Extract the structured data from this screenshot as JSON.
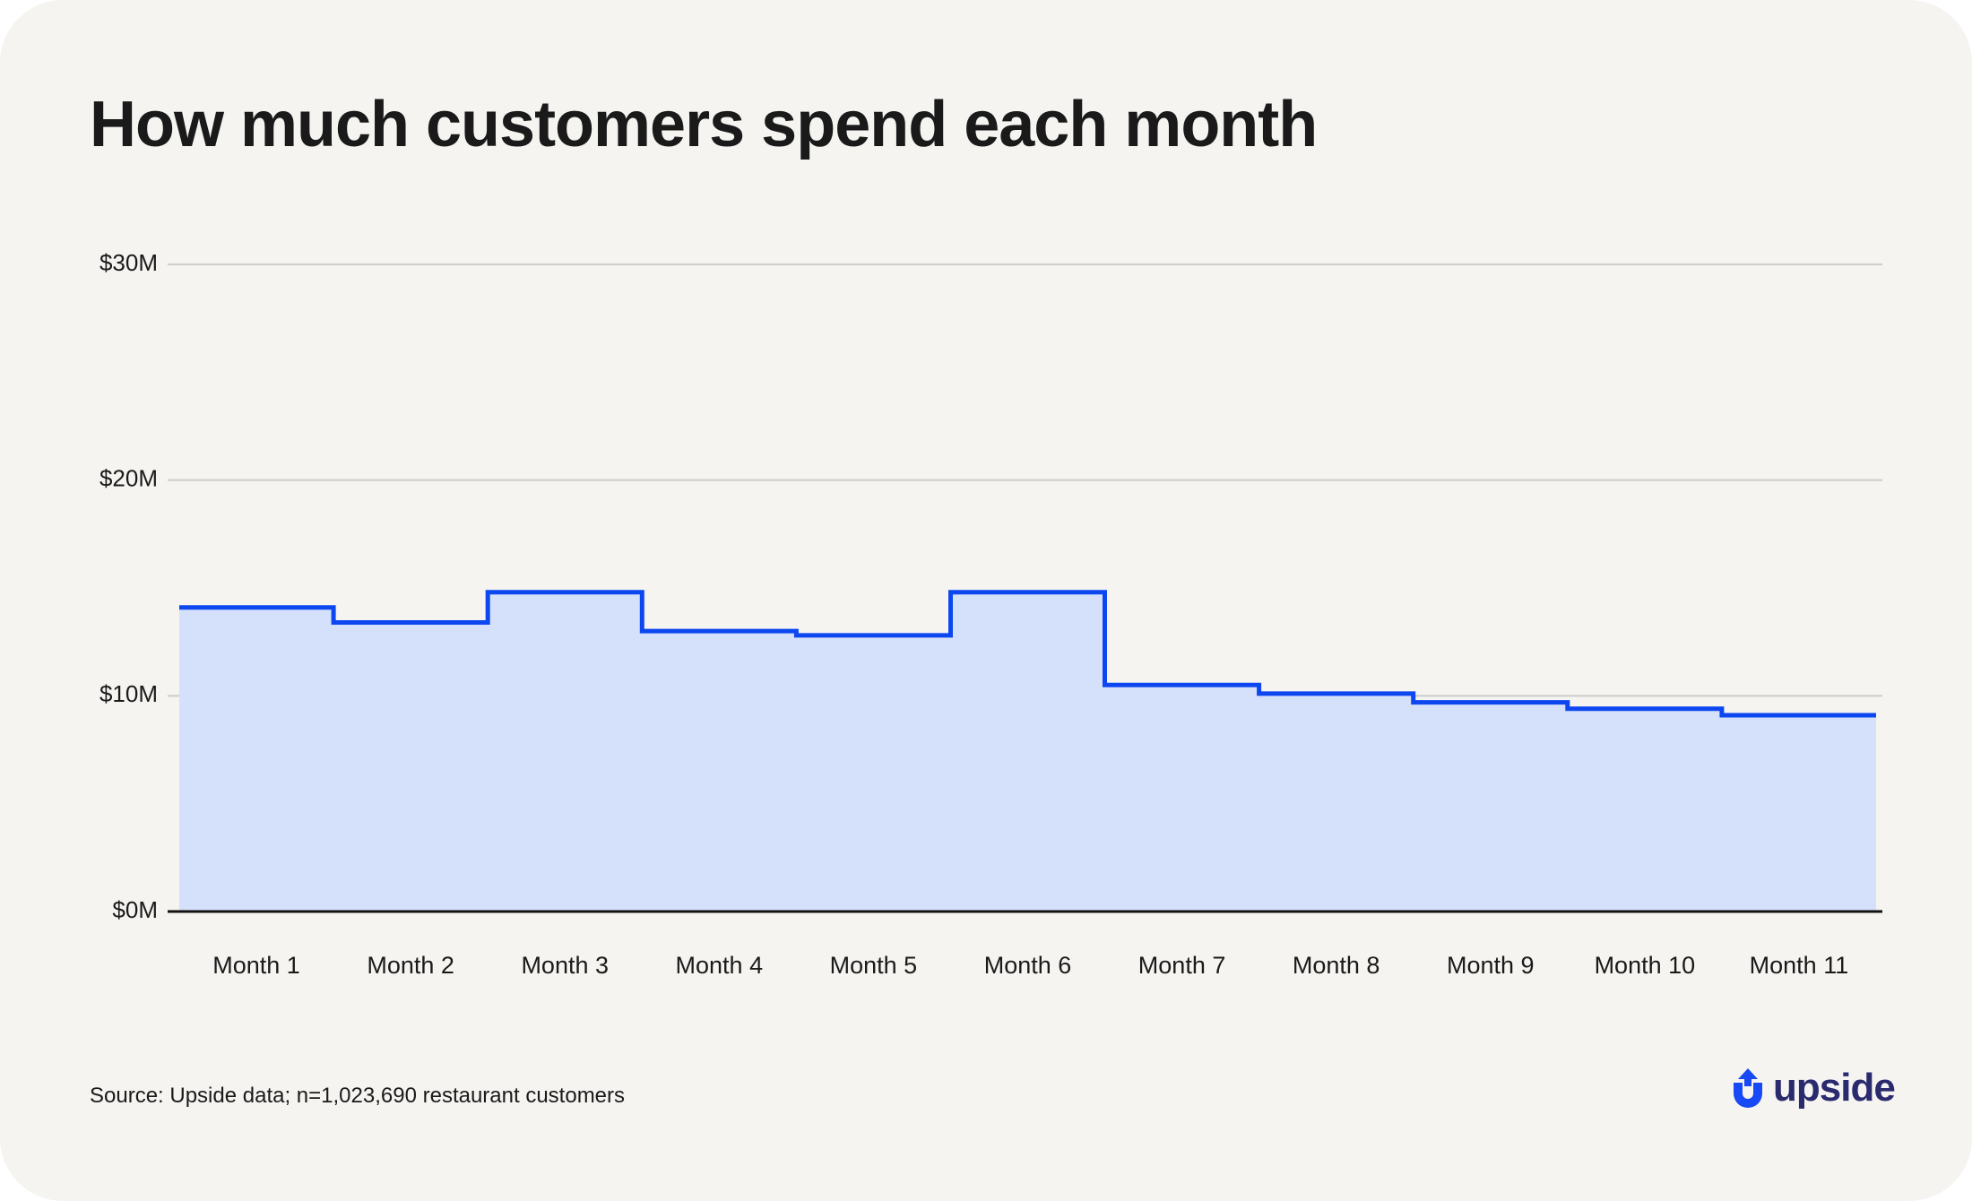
{
  "title": "How much customers spend each month",
  "source": "Source: Upside data; n=1,023,690 restaurant customers",
  "logo": {
    "text": "upside",
    "icon": "upside-arrow-icon",
    "mark_color": "#1749f5",
    "text_color": "#2a2a6e"
  },
  "colors": {
    "background": "#f5f4f1",
    "line": "#0c47f0",
    "fill": "#d5e0fa",
    "grid": "#cccccc",
    "axis": "#111111"
  },
  "chart_data": {
    "type": "area",
    "step": true,
    "categories": [
      "Month 1",
      "Month 2",
      "Month 3",
      "Month 4",
      "Month 5",
      "Month 6",
      "Month 7",
      "Month 8",
      "Month 9",
      "Month 10",
      "Month 11"
    ],
    "values": [
      14.1,
      13.4,
      14.8,
      13.0,
      12.8,
      14.8,
      10.5,
      10.1,
      9.7,
      9.4,
      9.1
    ],
    "unit": "$M",
    "ylim": [
      0,
      30
    ],
    "yticks": [
      0,
      10,
      20,
      30
    ],
    "ytick_labels": [
      "$0M",
      "$10M",
      "$20M",
      "$30M"
    ],
    "xlabel": "",
    "ylabel": "",
    "grid": true
  }
}
